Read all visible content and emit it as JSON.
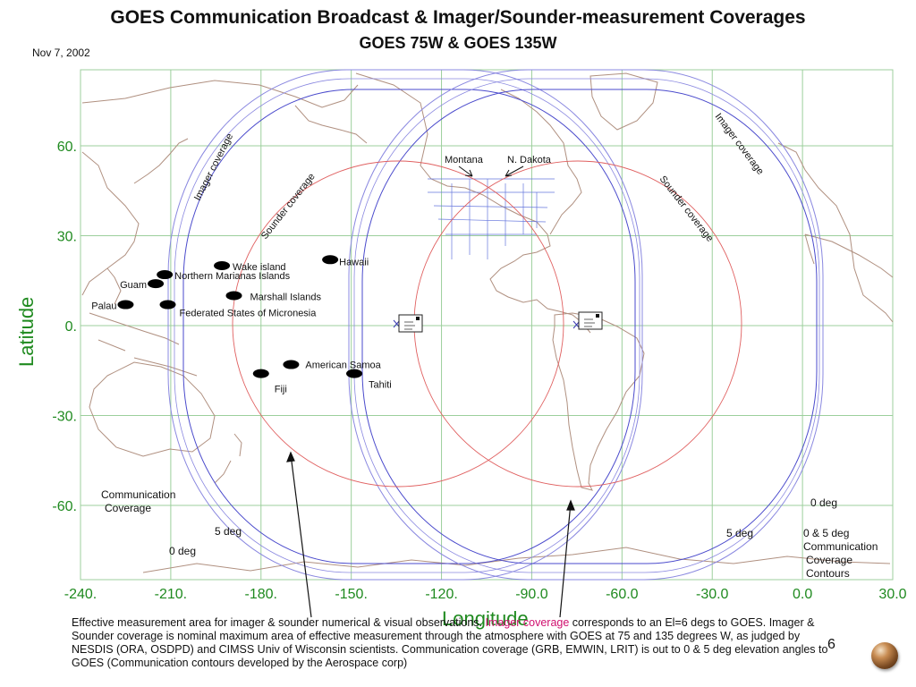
{
  "header": {
    "title": "GOES Communication Broadcast & Imager/Sounder-measurement Coverages",
    "subtitle": "GOES 75W & GOES 135W",
    "date": "Nov 7, 2002"
  },
  "axes": {
    "x_title": "Longitude",
    "y_title": "Latitude",
    "x_ticks": [
      {
        "value": -240,
        "label": "-240."
      },
      {
        "value": -210,
        "label": "-210."
      },
      {
        "value": -180,
        "label": "-180."
      },
      {
        "value": -150,
        "label": "-150."
      },
      {
        "value": -120,
        "label": "-120."
      },
      {
        "value": -90,
        "label": "-90.0"
      },
      {
        "value": -60,
        "label": "-60.0"
      },
      {
        "value": -30,
        "label": "-30.0"
      },
      {
        "value": 0,
        "label": "0.0"
      },
      {
        "value": 30,
        "label": "30.0"
      }
    ],
    "y_ticks": [
      {
        "value": 60,
        "label": "60."
      },
      {
        "value": 30,
        "label": "30."
      },
      {
        "value": 0,
        "label": "0."
      },
      {
        "value": -30,
        "label": "-30."
      },
      {
        "value": -60,
        "label": "-60."
      }
    ]
  },
  "colors": {
    "grid": "#9ccf9c",
    "axis": "#1f8a1f",
    "imager": "#8a88e0",
    "communication": "#4a4acc",
    "sounder": "#e06060",
    "coast": "#b09080",
    "border": "#6677dd"
  },
  "satellites": [
    {
      "name": "GOES 135W",
      "lon": -135,
      "icon": "satellite-icon"
    },
    {
      "name": "GOES 75W",
      "lon": -75,
      "icon": "satellite-icon"
    }
  ],
  "islands": [
    {
      "label": "Wake island",
      "lon": -193,
      "lat": 20
    },
    {
      "label": "Northern Marianas Islands",
      "lon": -212,
      "lat": 17
    },
    {
      "label": "Guam",
      "lon": -215,
      "lat": 14
    },
    {
      "label": "Palau",
      "lon": -225,
      "lat": 7
    },
    {
      "label": "Marshall Islands",
      "lon": -189,
      "lat": 10
    },
    {
      "label": "Federated States of Micronesia",
      "lon": -211,
      "lat": 7
    },
    {
      "label": "Hawaii",
      "lon": -157,
      "lat": 22
    },
    {
      "label": "American Samoa",
      "lon": -170,
      "lat": -13
    },
    {
      "label": "Fiji",
      "lon": -180,
      "lat": -16
    },
    {
      "label": "Tahiti",
      "lon": -149,
      "lat": -16
    }
  ],
  "annotations": {
    "imager_left": "Imager coverage",
    "sounder_left": "Sounder coverage",
    "imager_right": "Imager coverage",
    "sounder_right": "Sounder coverage",
    "montana": "Montana",
    "n_dakota": "N. Dakota",
    "comm_line1": "Communication",
    "comm_line2": "Coverage",
    "five_deg_left": "5 deg",
    "zero_deg_left": "0 deg",
    "five_deg_right": "5 deg",
    "zero_deg_right": "0   deg",
    "legend_line1": "0 & 5  deg",
    "legend_line2": "Communication",
    "legend_line3": "Coverage",
    "legend_line4": "Contours"
  },
  "caption": {
    "part1": "Effective measurement area for imager &  sounder numerical & visual observations.  ",
    "highlight": "Imager coverage",
    "part2": " corresponds  to an El=6 degs  to GOES. Imager & Sounder coverage is nominal  maximum  area of effective measurement through the atmosphere with GOES at 75 and 135 degrees W, as judged by NESDIS (ORA, OSDPD) and CIMSS Univ of Wisconsin scientists. Communication coverage (GRB, EMWIN, LRIT) is out to 0 & 5 deg elevation angles to GOES (Communication  contours developed by the Aerospace corp)"
  },
  "page_number": "6"
}
